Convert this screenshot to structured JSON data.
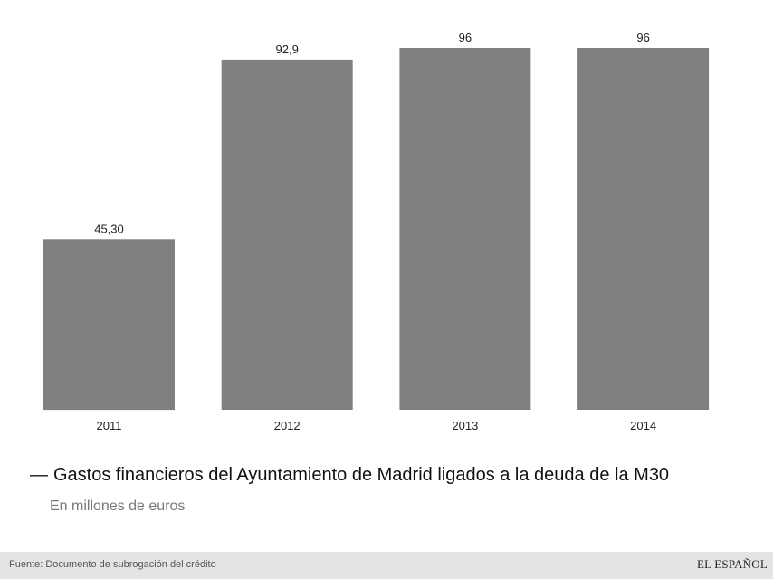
{
  "chart_data": {
    "type": "bar",
    "categories": [
      "2011",
      "2012",
      "2013",
      "2014"
    ],
    "values": [
      45.3,
      92.9,
      96,
      96
    ],
    "value_labels": [
      "45,30",
      "92,9",
      "96",
      "96"
    ],
    "title_dash": "—",
    "title": "Gastos financieros del Ayuntamiento de Madrid ligados a la deuda de la M30",
    "subtitle": "En millones de euros",
    "xlabel": "",
    "ylabel": "",
    "ylim": [
      0,
      96
    ],
    "bar_color": "#808080",
    "grid": false
  },
  "footer": {
    "source": "Fuente: Documento de subrogación del crédito",
    "brand": "EL ESPAÑOL"
  }
}
